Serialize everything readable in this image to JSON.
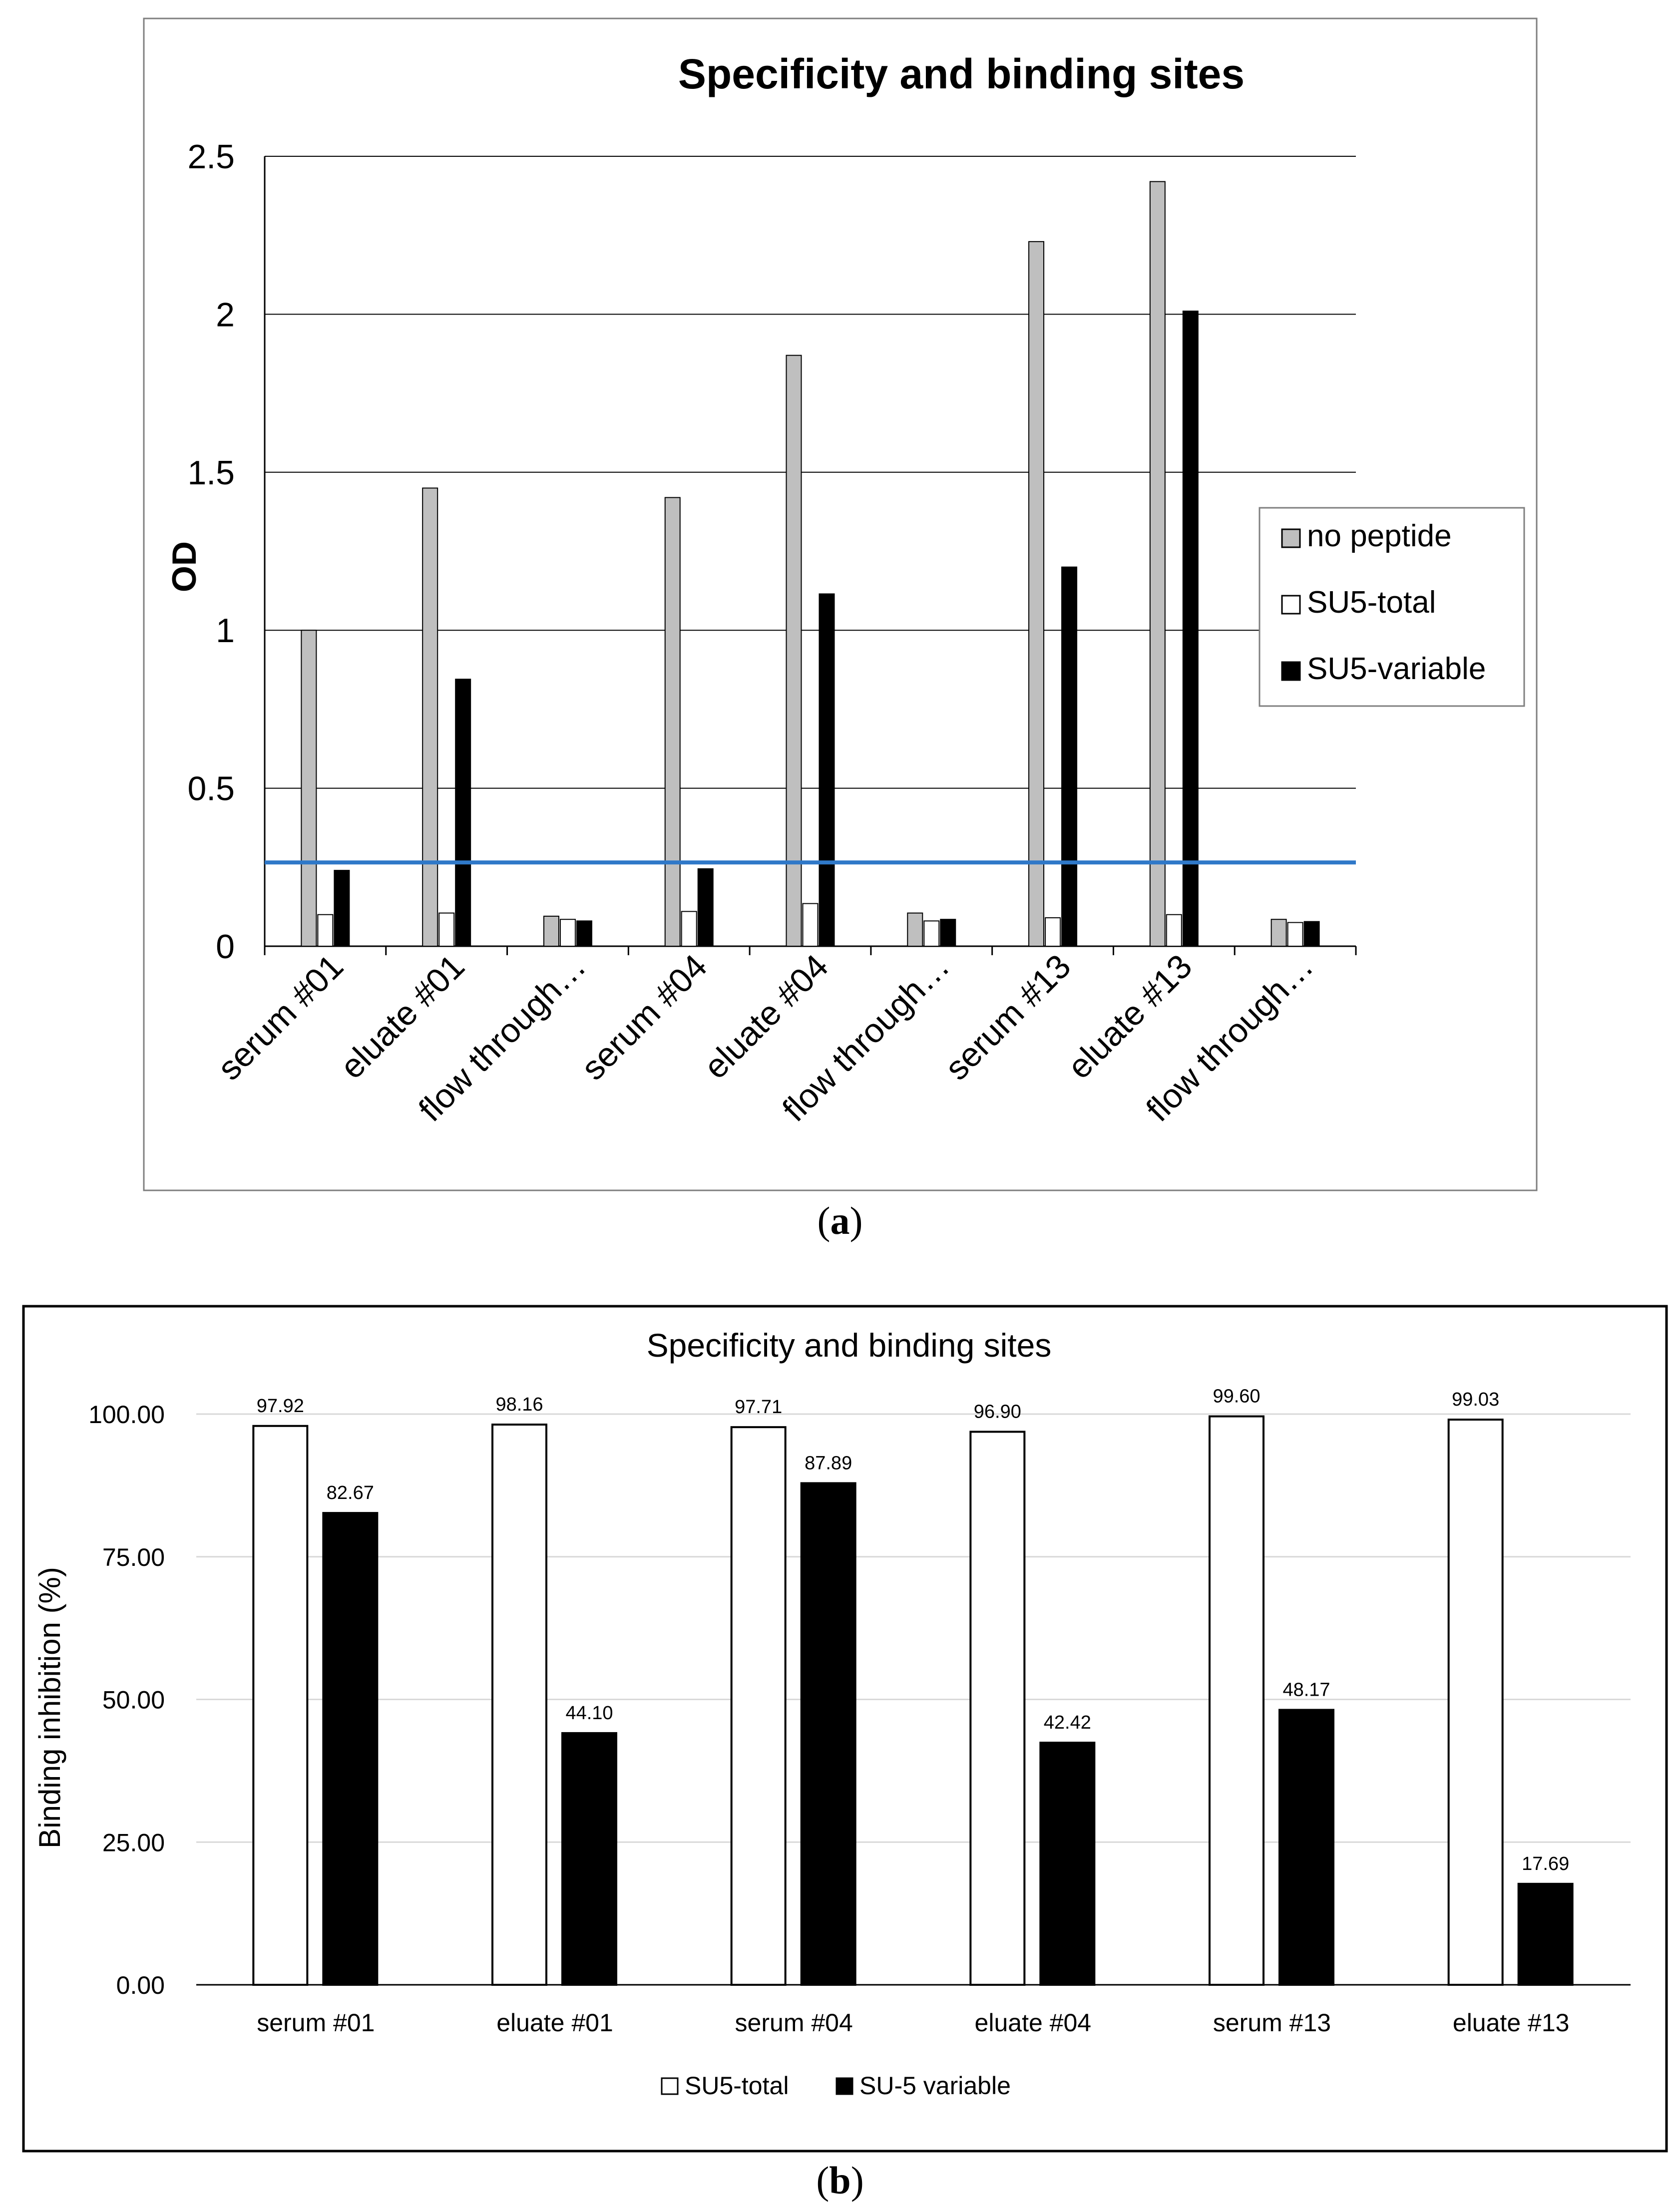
{
  "chart_data": [
    {
      "type": "bar",
      "panel": "a",
      "title": "Specificity and binding sites",
      "ylabel": "OD",
      "xlabel": "",
      "ylim": [
        0,
        2.5
      ],
      "yticks": [
        "0",
        "0.5",
        "1",
        "1.5",
        "2",
        "2.5"
      ],
      "categories": [
        "serum #01",
        "eluate #01",
        "flow through…",
        "serum #04",
        "eluate #04",
        "flow through…",
        "serum #13",
        "eluate #13",
        "flow through…"
      ],
      "series": [
        {
          "name": "no peptide",
          "color": "#bfbfbf",
          "values": [
            1.0,
            1.45,
            0.095,
            1.42,
            1.87,
            0.105,
            2.23,
            2.42,
            0.085
          ]
        },
        {
          "name": "SU5-total",
          "color": "#ffffff",
          "values": [
            0.1,
            0.105,
            0.085,
            0.11,
            0.135,
            0.08,
            0.09,
            0.1,
            0.075
          ]
        },
        {
          "name": "SU5-variable",
          "color": "#000000",
          "values": [
            0.24,
            0.845,
            0.08,
            0.245,
            1.115,
            0.085,
            1.2,
            2.01,
            0.078
          ]
        }
      ],
      "threshold": {
        "value": 0.265,
        "color": "#2f78c8"
      },
      "grid": true,
      "legend_position": "right"
    },
    {
      "type": "bar",
      "panel": "b",
      "title": "Specificity and binding sites",
      "ylabel": "Binding inhibition (%)",
      "xlabel": "",
      "ylim": [
        0,
        100
      ],
      "yticks": [
        "0.00",
        "25.00",
        "50.00",
        "75.00",
        "100.00"
      ],
      "categories": [
        "serum #01",
        "eluate #01",
        "serum #04",
        "eluate #04",
        "serum #13",
        "eluate #13"
      ],
      "series": [
        {
          "name": "SU5-total",
          "color": "#ffffff",
          "values": [
            97.92,
            98.16,
            97.71,
            96.9,
            99.6,
            99.03
          ],
          "labels": [
            "97.92",
            "98.16",
            "97.71",
            "96.90",
            "99.60",
            "99.03"
          ]
        },
        {
          "name": "SU-5 variable",
          "color": "#000000",
          "values": [
            82.67,
            44.1,
            87.89,
            42.42,
            48.17,
            17.69
          ],
          "labels": [
            "82.67",
            "44.10",
            "87.89",
            "42.42",
            "48.17",
            "17.69"
          ]
        }
      ],
      "grid": true,
      "legend_position": "bottom"
    }
  ],
  "captions": {
    "a": "a",
    "b": "b"
  }
}
